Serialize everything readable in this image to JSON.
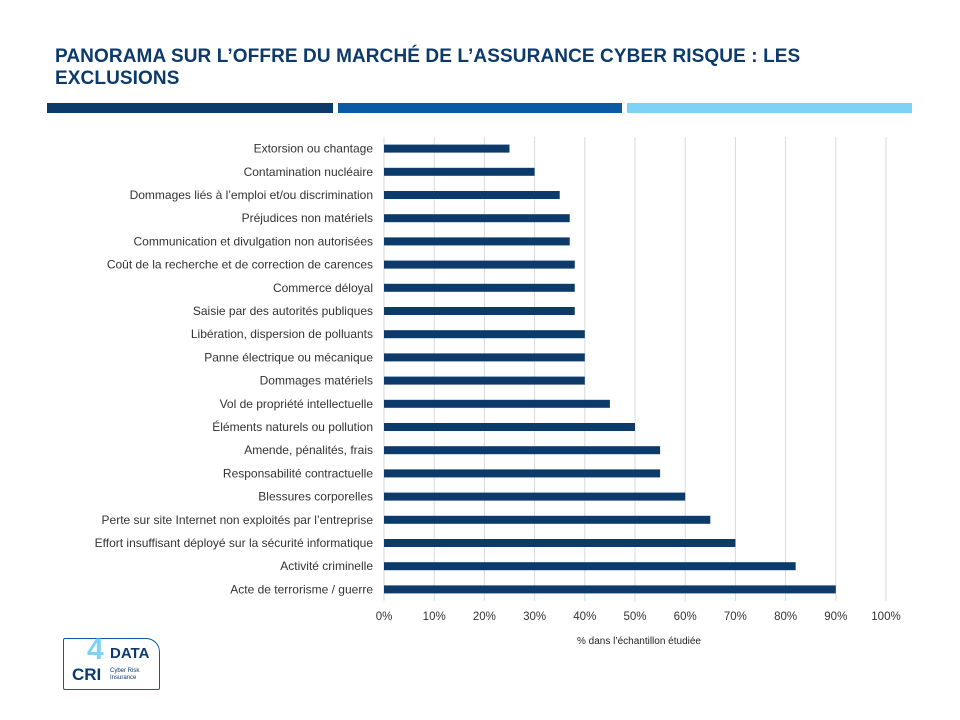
{
  "header": {
    "title": "PANORAMA SUR L’OFFRE DU MARCHÉ DE L’ASSURANCE CYBER RISQUE : LES EXCLUSIONS"
  },
  "colors": {
    "bar": "#0b3a6b",
    "rule_dark": "#0b3a6b",
    "rule_mid": "#0b5aa6",
    "rule_light": "#7dd3f5",
    "grid": "#d9d9d9"
  },
  "logo": {
    "digit": "4",
    "data": "DATA",
    "cri": "CRI",
    "subtitle": "Cyber Risk Insurance"
  },
  "chart_data": {
    "type": "bar",
    "orientation": "horizontal",
    "title": "",
    "xlabel": "% dans l’échantillon étudiée",
    "ylabel": "",
    "xlim": [
      0,
      100
    ],
    "grid": true,
    "categories": [
      "Extorsion ou chantage",
      "Contamination nucléaire",
      "Dommages liés à l’emploi et/ou discrimination",
      "Préjudices non matériels",
      "Communication et divulgation non autorisées",
      "Coût de la recherche et de correction de carences",
      "Commerce déloyal",
      "Saisie par des autorités publiques",
      "Libération, dispersion de polluants",
      "Panne électrique ou mécanique",
      "Dommages matériels",
      "Vol de propriété intellectuelle",
      "Éléments naturels ou pollution",
      "Amende, pénalités, frais",
      "Responsabilité contractuelle",
      "Blessures corporelles",
      "Perte sur site Internet non exploités par l’entreprise",
      "Effort insuffisant déployé sur la sécurité informatique",
      "Activité criminelle",
      "Acte de terrorisme / guerre"
    ],
    "values": [
      25,
      30,
      35,
      37,
      37,
      38,
      38,
      38,
      40,
      40,
      40,
      45,
      50,
      55,
      55,
      60,
      65,
      70,
      82,
      90
    ],
    "xticks": [
      "0%",
      "10%",
      "20%",
      "30%",
      "40%",
      "50%",
      "60%",
      "70%",
      "80%",
      "90%",
      "100%"
    ]
  }
}
